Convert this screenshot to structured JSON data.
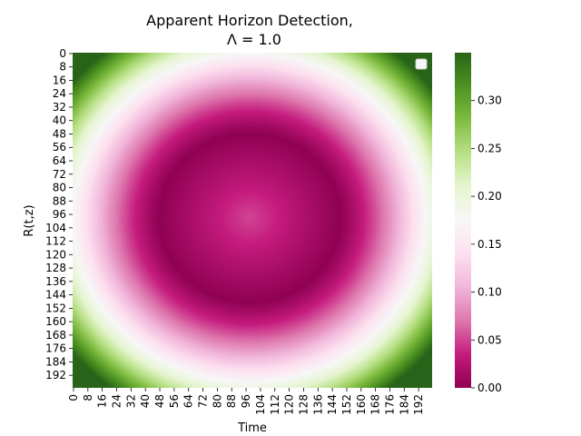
{
  "chart_data": {
    "type": "heatmap",
    "title_line1": "Apparent Horizon Detection,",
    "title_line2": "Λ = 1.0",
    "xlabel": "Time",
    "ylabel": "R(t,z)",
    "grid_size": 200,
    "center": [
      98,
      98
    ],
    "ring_radius": 50,
    "x_ticks": [
      0,
      8,
      16,
      24,
      32,
      40,
      48,
      56,
      64,
      72,
      80,
      88,
      96,
      104,
      112,
      120,
      128,
      136,
      144,
      152,
      160,
      168,
      176,
      184,
      192
    ],
    "y_ticks": [
      0,
      8,
      16,
      24,
      32,
      40,
      48,
      56,
      64,
      72,
      80,
      88,
      96,
      104,
      112,
      120,
      128,
      136,
      144,
      152,
      160,
      168,
      176,
      184,
      192
    ],
    "value_range": [
      0.0,
      0.35
    ],
    "colorscale": "PiYG",
    "colorbar": {
      "ticks": [
        0.0,
        0.05,
        0.1,
        0.15,
        0.2,
        0.25,
        0.3
      ],
      "tick_labels": [
        "0.00",
        "0.05",
        "0.10",
        "0.15",
        "0.20",
        "0.25",
        "0.30"
      ]
    },
    "legend": {
      "placement": "top-right",
      "entries": []
    },
    "grid": false
  }
}
